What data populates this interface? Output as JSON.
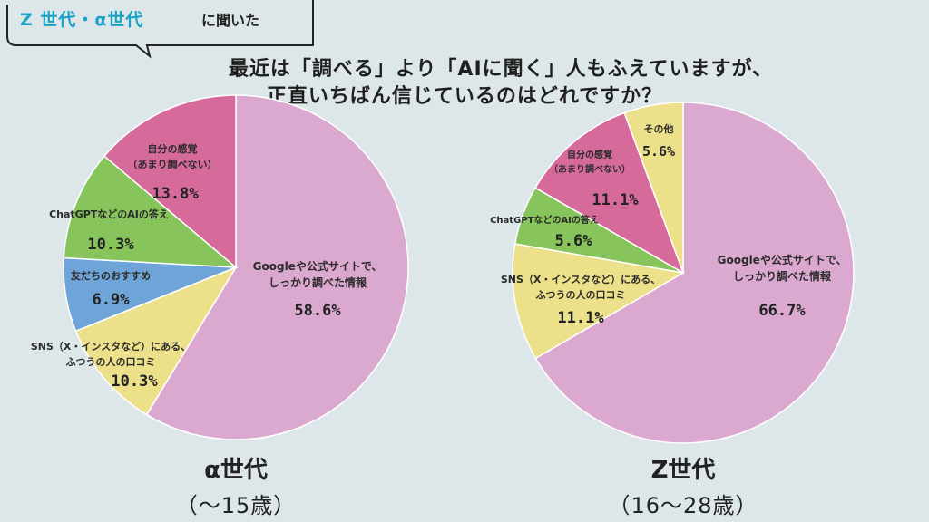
{
  "header": {
    "tag_highlight": "Z 世代・α世代",
    "tag_rest": "に聞いた",
    "question_line1": "最近は「調べる」より「AIに聞く」人もふえていますが、",
    "question_line2": "正直いちばん信じているのはどれですか？"
  },
  "colors": {
    "background": "#dde6e9",
    "highlight": "#1aa3c4",
    "pink": "#dba8cf",
    "yellow": "#ece08a",
    "blue": "#6ea4d8",
    "green": "#87c45c",
    "magenta": "#d56a9b"
  },
  "chart_data": [
    {
      "type": "pie",
      "title": "α世代",
      "subtitle": "（〜15歳）",
      "slices": [
        {
          "label_lines": [
            "Googleや公式サイトで、",
            "しっかり調べた情報"
          ],
          "value": 58.6,
          "display": "58.6%",
          "color": "#dba8cf"
        },
        {
          "label_lines": [
            "SNS（X・インスタなど）にある、",
            "ふつうの人の口コミ"
          ],
          "value": 10.3,
          "display": "10.3%",
          "color": "#ece08a"
        },
        {
          "label_lines": [
            "友だちのおすすめ"
          ],
          "value": 6.9,
          "display": "6.9%",
          "color": "#6ea4d8"
        },
        {
          "label_lines": [
            "ChatGPTなどのAIの答え"
          ],
          "value": 10.3,
          "display": "10.3%",
          "color": "#87c45c"
        },
        {
          "label_lines": [
            "自分の感覚",
            "（あまり調べない）"
          ],
          "value": 13.8,
          "display": "13.8%",
          "color": "#d56a9b"
        }
      ]
    },
    {
      "type": "pie",
      "title": "Z世代",
      "subtitle": "（16〜28歳）",
      "slices": [
        {
          "label_lines": [
            "Googleや公式サイトで、",
            "しっかり調べた情報"
          ],
          "value": 66.7,
          "display": "66.7%",
          "color": "#dba8cf"
        },
        {
          "label_lines": [
            "SNS（X・インスタなど）にある、",
            "ふつうの人の口コミ"
          ],
          "value": 11.1,
          "display": "11.1%",
          "color": "#ece08a"
        },
        {
          "label_lines": [
            "ChatGPTなどのAIの答え"
          ],
          "value": 5.6,
          "display": "5.6%",
          "color": "#87c45c"
        },
        {
          "label_lines": [
            "自分の感覚",
            "（あまり調べない）"
          ],
          "value": 11.1,
          "display": "11.1%",
          "color": "#d56a9b"
        },
        {
          "label_lines": [
            "その他"
          ],
          "value": 5.6,
          "display": "5.6%",
          "color": "#ece08a"
        }
      ]
    }
  ]
}
